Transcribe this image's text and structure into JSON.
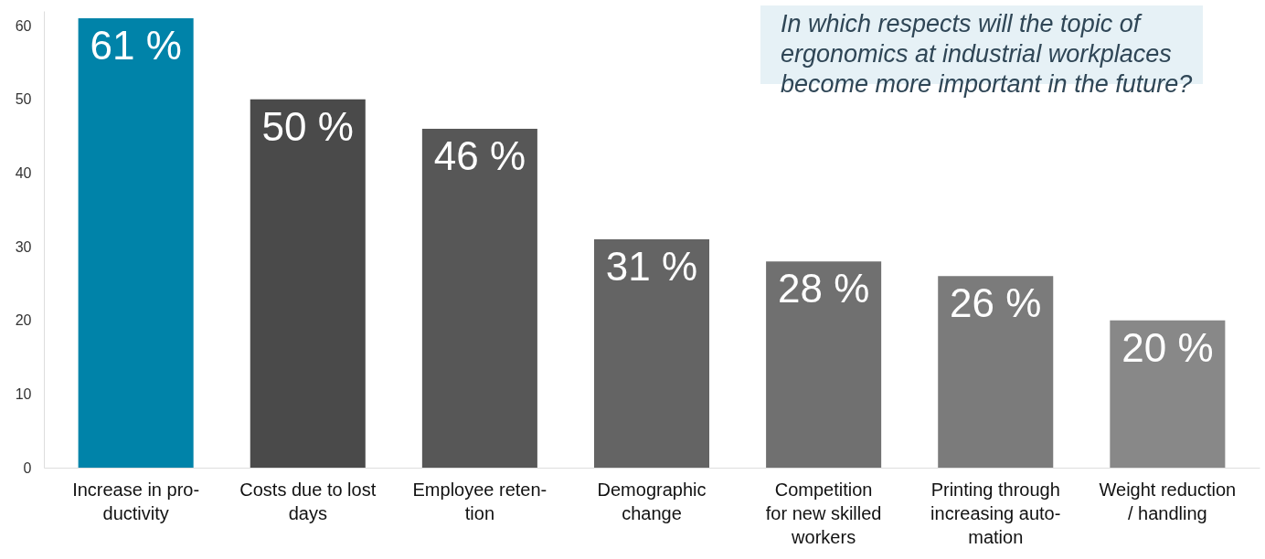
{
  "chart_data": {
    "type": "bar",
    "title": "In which respects will the topic of\nergonomics at industrial workplaces\nbecome more important in the future?",
    "categories": [
      "Increase in pro-\nductivity",
      "Costs due to lost\ndays",
      "Employee reten-\ntion",
      "Demographic\nchange",
      "Competition\nfor new skilled\nworkers",
      "Printing through\nincreasing auto-\nmation",
      "Weight reduction\n/ handling"
    ],
    "values": [
      61,
      50,
      46,
      31,
      28,
      26,
      20
    ],
    "value_labels": [
      "61 %",
      "50 %",
      "46 %",
      "31 %",
      "28 %",
      "26 %",
      "20 %"
    ],
    "colors": [
      "#0083a9",
      "#4a4a4a",
      "#575757",
      "#646464",
      "#707070",
      "#7b7b7b",
      "#888888"
    ],
    "ylim": [
      0,
      62
    ],
    "yticks": [
      0,
      10,
      20,
      30,
      40,
      50,
      60
    ],
    "grid": false
  }
}
